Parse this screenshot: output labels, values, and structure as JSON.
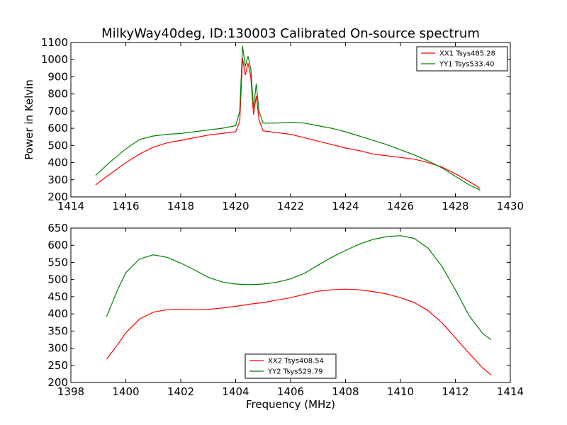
{
  "title": "MilkyWay40deg, ID:130003 Calibrated On-source spectrum",
  "chart_data": [
    {
      "type": "line",
      "ylabel": "Power in Kelvin",
      "xlabel": "",
      "xlim": [
        1414,
        1430
      ],
      "ylim": [
        200,
        1100
      ],
      "xticks": [
        "1414",
        "1416",
        "1418",
        "1420",
        "1422",
        "1424",
        "1426",
        "1428",
        "1430"
      ],
      "yticks": [
        "200",
        "300",
        "400",
        "500",
        "600",
        "700",
        "800",
        "900",
        "1000",
        "1100"
      ],
      "legend_position": "top-right",
      "series": [
        {
          "name": "XX1 Tsys485.28",
          "color": "#ff0000",
          "x": [
            1414.9,
            1415.4,
            1416.0,
            1416.5,
            1417.0,
            1417.5,
            1418.0,
            1418.5,
            1419.0,
            1419.5,
            1420.0,
            1420.15,
            1420.25,
            1420.35,
            1420.45,
            1420.55,
            1420.65,
            1420.75,
            1420.85,
            1421.0,
            1421.5,
            1422.0,
            1422.5,
            1423.0,
            1423.5,
            1424.0,
            1424.5,
            1425.0,
            1425.5,
            1426.0,
            1426.5,
            1427.0,
            1427.5,
            1428.0,
            1428.5,
            1428.9
          ],
          "y": [
            270,
            330,
            400,
            450,
            490,
            515,
            530,
            545,
            560,
            570,
            580,
            640,
            1010,
            910,
            980,
            900,
            680,
            790,
            650,
            585,
            575,
            565,
            545,
            525,
            505,
            485,
            470,
            450,
            440,
            430,
            420,
            400,
            375,
            335,
            290,
            250
          ]
        },
        {
          "name": "YY1 Tsys533.40",
          "color": "#008000",
          "x": [
            1414.9,
            1415.4,
            1416.0,
            1416.5,
            1417.0,
            1417.5,
            1418.0,
            1418.5,
            1419.0,
            1419.5,
            1420.0,
            1420.15,
            1420.25,
            1420.35,
            1420.45,
            1420.55,
            1420.65,
            1420.75,
            1420.85,
            1421.0,
            1421.5,
            1422.0,
            1422.5,
            1423.0,
            1423.5,
            1424.0,
            1424.5,
            1425.0,
            1425.5,
            1426.0,
            1426.5,
            1427.0,
            1427.5,
            1428.0,
            1428.5,
            1428.9
          ],
          "y": [
            325,
            400,
            480,
            535,
            555,
            565,
            570,
            580,
            590,
            600,
            615,
            700,
            1080,
            960,
            1020,
            950,
            720,
            860,
            700,
            630,
            630,
            635,
            630,
            615,
            600,
            580,
            555,
            530,
            505,
            475,
            445,
            410,
            370,
            320,
            270,
            240
          ]
        }
      ]
    },
    {
      "type": "line",
      "ylabel": "",
      "xlabel": "Frequency (MHz)",
      "xlim": [
        1398,
        1414
      ],
      "ylim": [
        200,
        650
      ],
      "xticks": [
        "1398",
        "1400",
        "1402",
        "1404",
        "1406",
        "1408",
        "1410",
        "1412",
        "1414"
      ],
      "yticks": [
        "200",
        "250",
        "300",
        "350",
        "400",
        "450",
        "500",
        "550",
        "600",
        "650"
      ],
      "legend_position": "bottom-center",
      "series": [
        {
          "name": "XX2 Tsys408.54",
          "color": "#ff0000",
          "x": [
            1399.3,
            1399.7,
            1400.0,
            1400.5,
            1401.0,
            1401.5,
            1402.0,
            1402.5,
            1403.0,
            1403.5,
            1404.0,
            1404.5,
            1405.0,
            1405.5,
            1406.0,
            1406.5,
            1407.0,
            1407.5,
            1408.0,
            1408.5,
            1409.0,
            1409.5,
            1410.0,
            1410.5,
            1411.0,
            1411.5,
            1412.0,
            1412.5,
            1413.0,
            1413.3
          ],
          "y": [
            268,
            310,
            345,
            385,
            405,
            412,
            413,
            412,
            413,
            417,
            422,
            428,
            433,
            440,
            447,
            457,
            466,
            470,
            472,
            470,
            465,
            458,
            447,
            433,
            410,
            375,
            330,
            285,
            242,
            222
          ]
        },
        {
          "name": "YY2 Tsys529.79",
          "color": "#008000",
          "x": [
            1399.3,
            1399.7,
            1400.0,
            1400.5,
            1401.0,
            1401.5,
            1402.0,
            1402.5,
            1403.0,
            1403.5,
            1404.0,
            1404.5,
            1405.0,
            1405.5,
            1406.0,
            1406.5,
            1407.0,
            1407.5,
            1408.0,
            1408.5,
            1409.0,
            1409.5,
            1410.0,
            1410.5,
            1411.0,
            1411.5,
            1412.0,
            1412.5,
            1413.0,
            1413.3
          ],
          "y": [
            392,
            470,
            520,
            560,
            572,
            565,
            548,
            528,
            507,
            493,
            487,
            485,
            487,
            492,
            502,
            518,
            542,
            565,
            585,
            603,
            617,
            625,
            628,
            620,
            592,
            540,
            470,
            395,
            342,
            325
          ]
        }
      ]
    }
  ]
}
